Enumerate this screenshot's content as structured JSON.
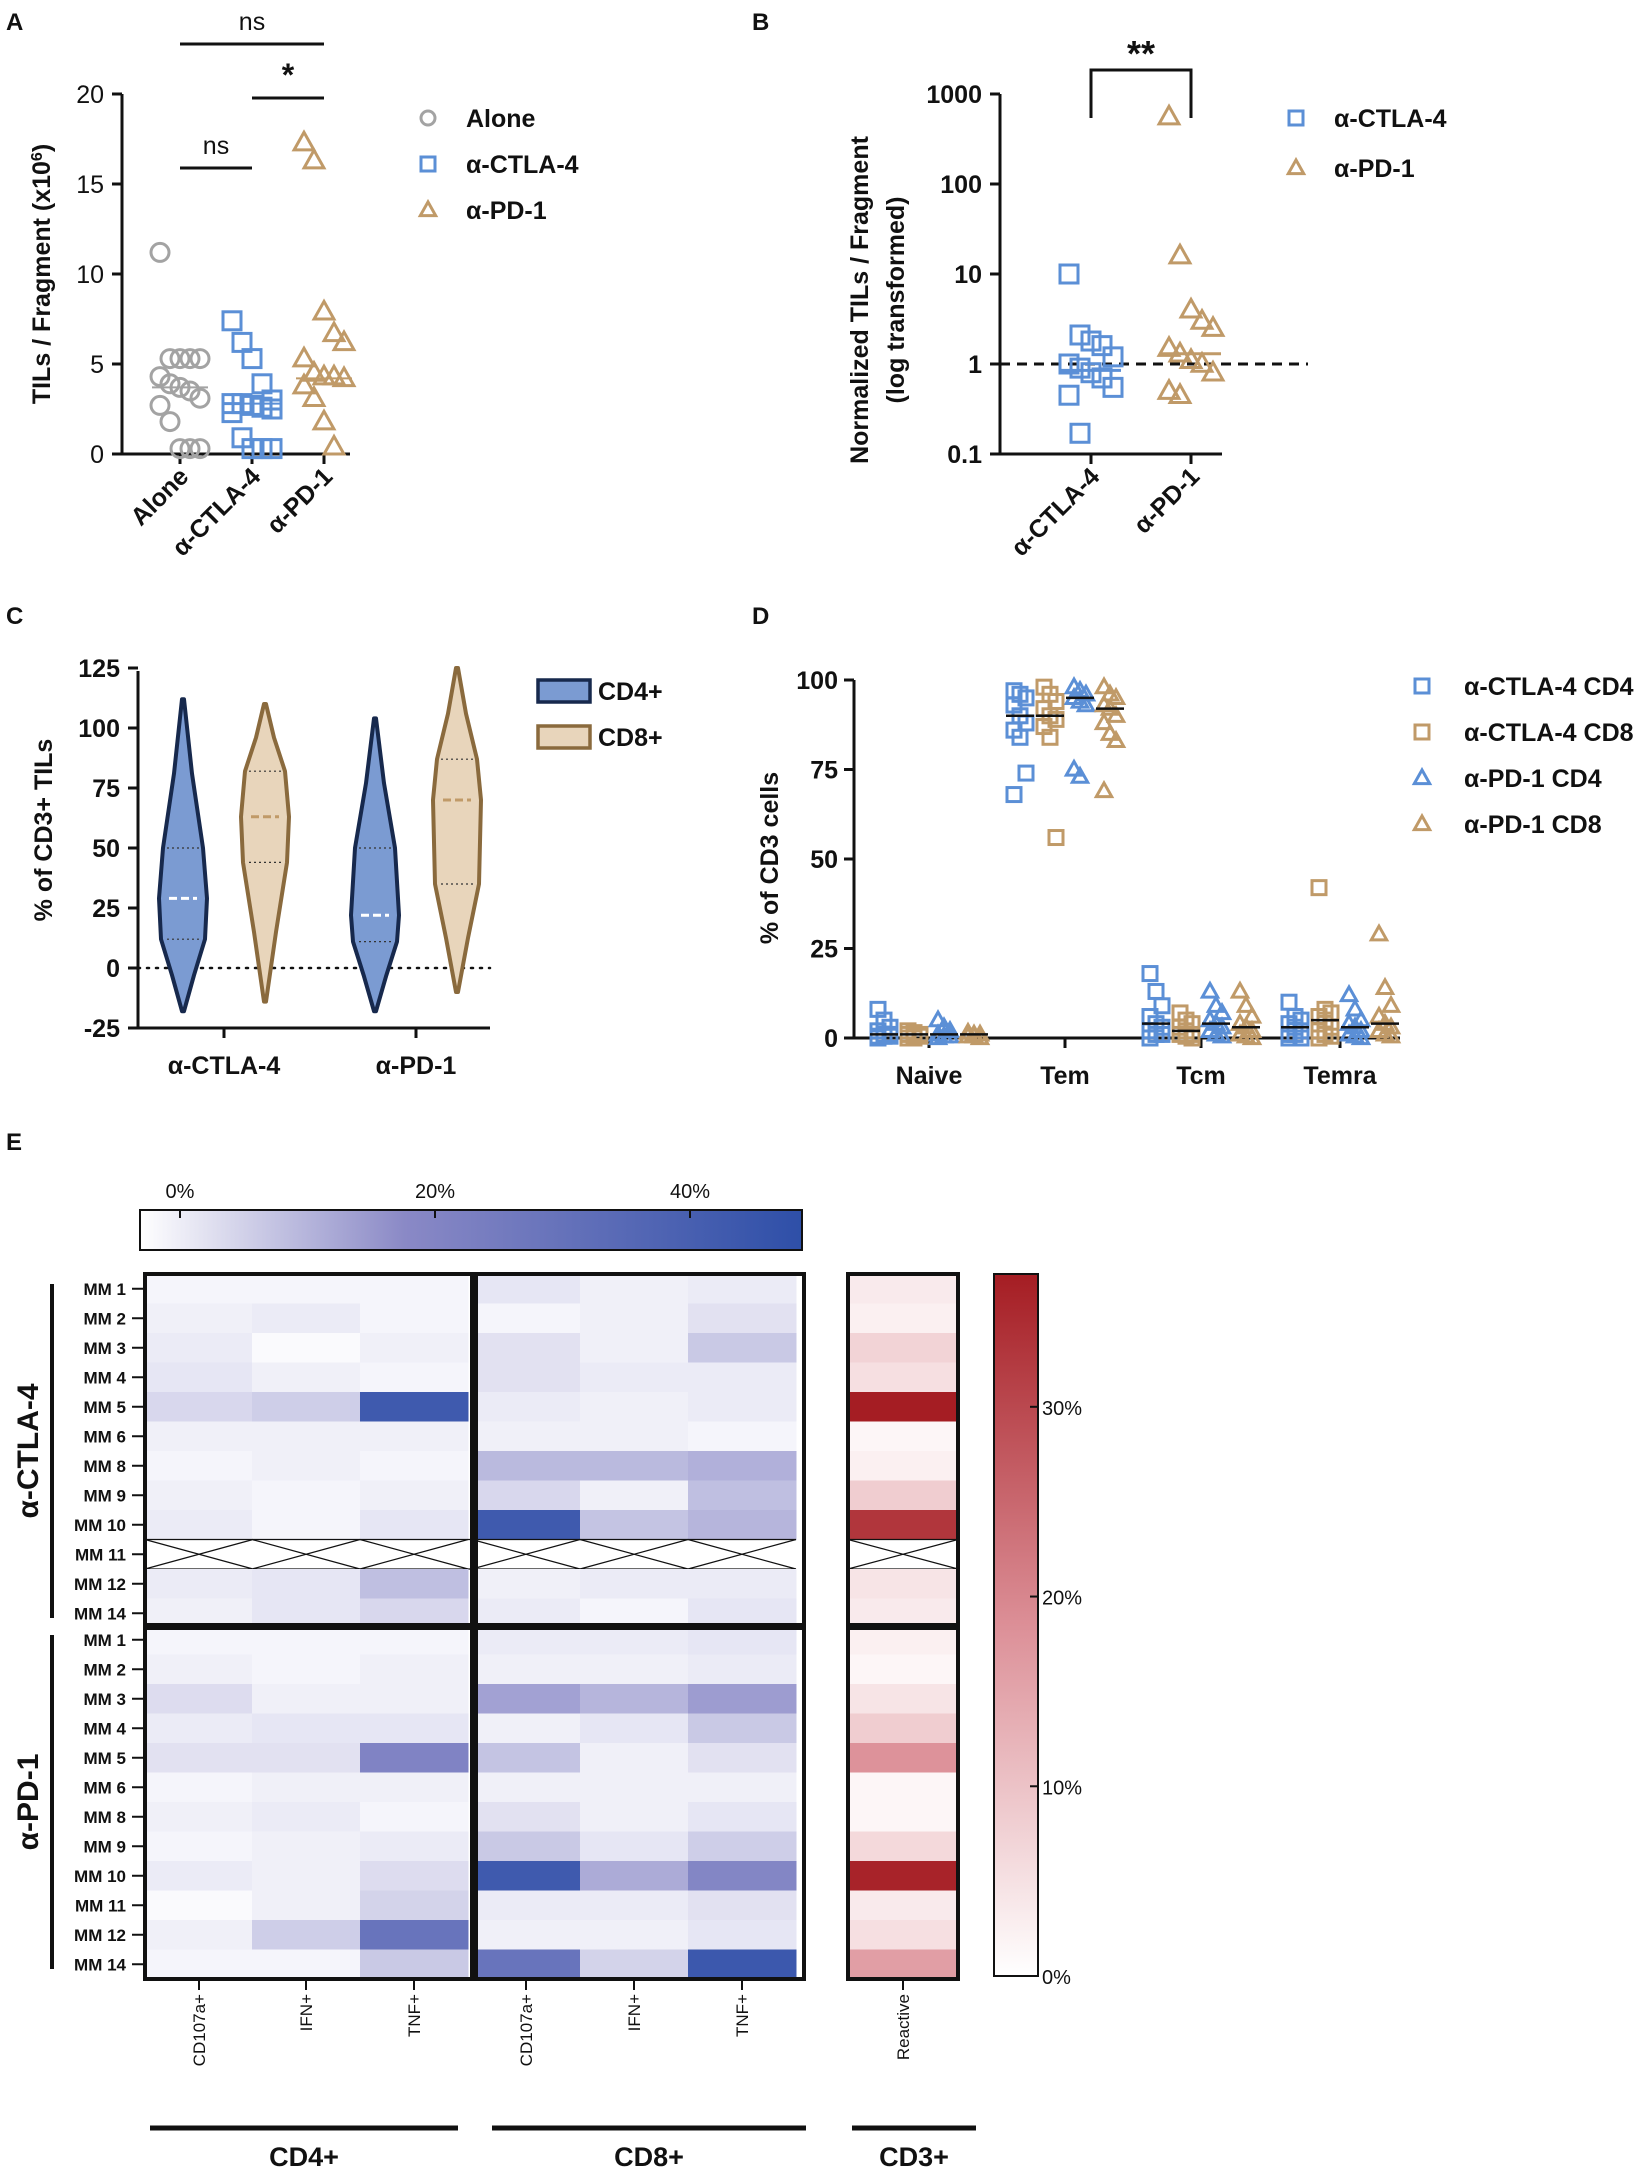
{
  "panelA": {
    "label": "A",
    "ylabel": "TILs / Fragment (x10",
    "ylabel_sup": "6",
    "ylabel_close": ")",
    "yticks": [
      0,
      5,
      10,
      15,
      20
    ],
    "categories": [
      "Alone",
      "α-CTLA-4",
      "α-PD-1"
    ],
    "legend": [
      "Alone",
      "α-CTLA-4",
      "α-PD-1"
    ],
    "sig": [
      "ns",
      "*",
      "ns"
    ],
    "chart_data": {
      "type": "scatter",
      "title": "",
      "ylabel": "TILs / Fragment (x10^6)",
      "ylim": [
        0,
        20
      ],
      "categories": [
        "Alone",
        "α-CTLA-4",
        "α-PD-1"
      ],
      "series": [
        {
          "name": "Alone",
          "marker": "circle",
          "median": 3.7,
          "values": [
            11.2,
            5.3,
            5.3,
            5.3,
            5.3,
            4.3,
            3.9,
            3.7,
            3.5,
            3.1,
            2.7,
            1.8,
            0.3,
            0.3,
            0.3
          ]
        },
        {
          "name": "α-CTLA-4",
          "marker": "square",
          "median": 2.8,
          "values": [
            7.4,
            6.2,
            5.3,
            3.9,
            3.0,
            2.8,
            2.8,
            2.7,
            2.6,
            2.5,
            2.3,
            0.9,
            0.3,
            0.3,
            0.3
          ]
        },
        {
          "name": "α-PD-1",
          "marker": "triangle",
          "median": 4.2,
          "values": [
            17.3,
            16.3,
            7.9,
            6.7,
            6.2,
            5.3,
            4.5,
            4.3,
            4.3,
            4.2,
            3.8,
            3.1,
            1.8,
            0.4
          ]
        }
      ]
    }
  },
  "panelB": {
    "label": "B",
    "ylabel_line1": "Normalized TILs / Fragment",
    "ylabel_line2": "(log transformed)",
    "yticks": [
      "0.1",
      "1",
      "10",
      "100",
      "1000"
    ],
    "categories": [
      "α-CTLA-4",
      "α-PD-1"
    ],
    "legend": [
      "α-CTLA-4",
      "α-PD-1"
    ],
    "sig": "**",
    "chart_data": {
      "type": "scatter",
      "yscale": "log",
      "ylim": [
        0.1,
        1000
      ],
      "reference_line": 1,
      "categories": [
        "α-CTLA-4",
        "α-PD-1"
      ],
      "series": [
        {
          "name": "α-CTLA-4",
          "marker": "square",
          "median": 0.85,
          "values": [
            10,
            2.1,
            1.8,
            1.6,
            1.2,
            1.0,
            0.9,
            0.8,
            0.7,
            0.55,
            0.45,
            0.17
          ]
        },
        {
          "name": "α-PD-1",
          "marker": "triangle",
          "median": 1.3,
          "values": [
            560,
            16,
            4.0,
            3.0,
            2.5,
            1.5,
            1.3,
            1.1,
            1.0,
            0.8,
            0.5,
            0.45
          ]
        }
      ]
    }
  },
  "panelC": {
    "label": "C",
    "ylabel": "% of  CD3+  TILs",
    "yticks": [
      -25,
      0,
      25,
      50,
      75,
      100,
      125
    ],
    "categories": [
      "α-CTLA-4",
      "α-PD-1"
    ],
    "legend": [
      "CD4+",
      "CD8+"
    ],
    "chart_data": {
      "type": "violin",
      "ylim": [
        -25,
        125
      ],
      "categories": [
        "α-CTLA-4",
        "α-PD-1"
      ],
      "series": [
        {
          "name": "CD4+",
          "values": [
            {
              "min": -18,
              "q1": 12,
              "median": 29,
              "q3": 50,
              "max": 112
            },
            {
              "min": -18,
              "q1": 11,
              "median": 22,
              "q3": 50,
              "max": 104
            }
          ]
        },
        {
          "name": "CD8+",
          "values": [
            {
              "min": -14,
              "q1": 44,
              "median": 63,
              "q3": 82,
              "max": 110
            },
            {
              "min": -10,
              "q1": 35,
              "median": 70,
              "q3": 87,
              "max": 125
            }
          ]
        }
      ]
    }
  },
  "panelD": {
    "label": "D",
    "ylabel": "% of CD3 cells",
    "yticks": [
      0,
      25,
      50,
      75,
      100
    ],
    "categories": [
      "Naive",
      "Tem",
      "Tcm",
      "Temra"
    ],
    "legend": [
      "α-CTLA-4 CD4",
      "α-CTLA-4 CD8",
      "α-PD-1 CD4",
      "α-PD-1 CD8"
    ],
    "chart_data": {
      "type": "scatter",
      "ylim": [
        0,
        100
      ],
      "categories": [
        "Naive",
        "Tem",
        "Tcm",
        "Temra"
      ],
      "series": [
        {
          "name": "α-CTLA-4 CD4",
          "marker": "square",
          "values": [
            [
              8,
              5,
              3,
              2,
              1,
              1,
              0.5,
              0.5,
              0.5,
              0
            ],
            [
              97,
              96,
              95,
              93,
              90,
              88,
              86,
              84,
              74,
              68
            ],
            [
              18,
              13,
              9,
              6,
              4,
              3,
              2,
              1,
              1,
              0
            ],
            [
              10,
              6,
              5,
              4,
              3,
              2,
              1,
              1,
              0,
              0
            ]
          ]
        },
        {
          "name": "α-CTLA-4 CD8",
          "marker": "square",
          "values": [
            [
              2,
              1.5,
              1,
              1,
              0.5,
              0.5,
              0,
              0
            ],
            [
              98,
              96,
              94,
              92,
              90,
              89,
              87,
              84,
              56
            ],
            [
              7,
              5,
              4,
              3,
              2,
              1,
              1,
              0.5,
              0
            ],
            [
              42,
              8,
              7,
              6,
              5,
              3,
              2,
              1,
              0.5,
              0
            ]
          ]
        },
        {
          "name": "α-PD-1 CD4",
          "marker": "triangle",
          "values": [
            [
              5,
              3,
              2,
              1,
              0.5,
              0.5,
              0
            ],
            [
              98,
              97,
              96,
              95,
              94,
              93,
              75,
              73
            ],
            [
              13,
              9,
              7,
              5,
              4,
              3,
              2,
              1,
              0.5
            ],
            [
              12,
              8,
              5,
              4,
              3,
              2,
              1,
              0.5,
              0
            ]
          ]
        },
        {
          "name": "α-PD-1 CD8",
          "marker": "triangle",
          "values": [
            [
              1.5,
              1,
              1,
              0.5,
              0.5,
              0
            ],
            [
              98,
              96,
              95,
              93,
              92,
              90,
              88,
              85,
              83,
              69
            ],
            [
              13,
              9,
              6,
              4,
              3,
              2,
              1,
              0.5,
              0
            ],
            [
              29,
              14,
              9,
              6,
              4,
              3,
              2,
              1,
              0.5
            ]
          ]
        }
      ]
    }
  },
  "panelE": {
    "label": "E",
    "blue_scale_ticks": [
      "0%",
      "20%",
      "40%"
    ],
    "red_scale_ticks": [
      "30%",
      "20%",
      "10%",
      "0%"
    ],
    "groups": [
      "α-CTLA-4",
      "α-PD-1"
    ],
    "rows_ctla": [
      "MM 1",
      "MM 2",
      "MM 3",
      "MM 4",
      "MM 5",
      "MM 6",
      "MM 8",
      "MM 9",
      "MM 10",
      "MM 11",
      "MM 12",
      "MM 14"
    ],
    "rows_pd1": [
      "MM 1",
      "MM 2",
      "MM 3",
      "MM 4",
      "MM 5",
      "MM 6",
      "MM 8",
      "MM 9",
      "MM 10",
      "MM 11",
      "MM 12",
      "MM 14"
    ],
    "columns": [
      "CD107a+",
      "IFN+",
      "TNF+",
      "CD107a+",
      "IFN+",
      "TNF+",
      "Reactive"
    ],
    "column_groups": [
      "CD4+",
      "CD8+",
      "CD3+"
    ],
    "chart_data": {
      "type": "heatmap",
      "blue_range_pct": [
        0,
        50
      ],
      "red_range_pct": [
        0,
        37
      ],
      "columns": [
        "CD4+ CD107a+",
        "CD4+ IFN+",
        "CD4+ TNF+",
        "CD8+ CD107a+",
        "CD8+ IFN+",
        "CD8+ TNF+",
        "CD3+ Reactive"
      ],
      "ctla4": [
        [
          1,
          1,
          1,
          4,
          2,
          3,
          3
        ],
        [
          2,
          3,
          1,
          1,
          2,
          5,
          2
        ],
        [
          3,
          0,
          2,
          5,
          2,
          10,
          7
        ],
        [
          4,
          2,
          1,
          5,
          3,
          3,
          5
        ],
        [
          7,
          9,
          45,
          3,
          2,
          3,
          37
        ],
        [
          2,
          2,
          2,
          2,
          2,
          1,
          1
        ],
        [
          1,
          2,
          1,
          13,
          13,
          15,
          2
        ],
        [
          2,
          1,
          2,
          7,
          2,
          12,
          8
        ],
        [
          3,
          1,
          4,
          45,
          11,
          14,
          33
        ],
        null,
        [
          3,
          4,
          12,
          2,
          3,
          3,
          4
        ],
        [
          2,
          4,
          7,
          3,
          1,
          4,
          3
        ]
      ],
      "pd1": [
        [
          1,
          1,
          1,
          3,
          3,
          4,
          2
        ],
        [
          2,
          1,
          2,
          2,
          2,
          3,
          1
        ],
        [
          6,
          2,
          2,
          18,
          14,
          19,
          4
        ],
        [
          3,
          4,
          4,
          2,
          4,
          10,
          8
        ],
        [
          5,
          5,
          26,
          11,
          2,
          5,
          18
        ],
        [
          1,
          2,
          2,
          2,
          2,
          2,
          1
        ],
        [
          2,
          3,
          1,
          5,
          2,
          4,
          1
        ],
        [
          1,
          2,
          3,
          10,
          4,
          9,
          6
        ],
        [
          3,
          2,
          6,
          45,
          16,
          25,
          36
        ],
        [
          0,
          2,
          8,
          3,
          3,
          5,
          3
        ],
        [
          2,
          9,
          33,
          2,
          2,
          4,
          5
        ],
        [
          1,
          1,
          10,
          33,
          8,
          46,
          16
        ]
      ]
    }
  }
}
